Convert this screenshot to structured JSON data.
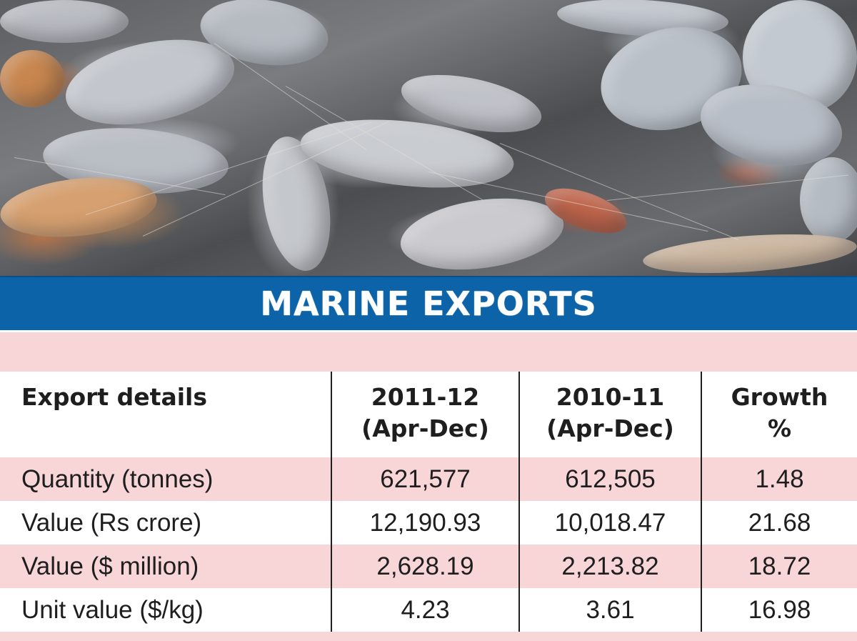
{
  "banner": {
    "title": "MARINE EXPORTS",
    "color": "#0d63a8"
  },
  "table": {
    "headers": [
      [
        "Export details"
      ],
      [
        "2011-12",
        "(Apr-Dec)"
      ],
      [
        "2010-11",
        "(Apr-Dec)"
      ],
      [
        "Growth",
        "%"
      ]
    ],
    "rows": [
      [
        "Quantity (tonnes)",
        "621,577",
        "612,505",
        "1.48"
      ],
      [
        "Value (Rs crore)",
        "12,190.93",
        "10,018.47",
        "21.68"
      ],
      [
        "Value ($ million)",
        "2,628.19",
        "2,213.82",
        "18.72"
      ],
      [
        "Unit value ($/kg)",
        "4.23",
        "3.61",
        "16.98"
      ]
    ],
    "shade_color": "#f8d6d8"
  }
}
